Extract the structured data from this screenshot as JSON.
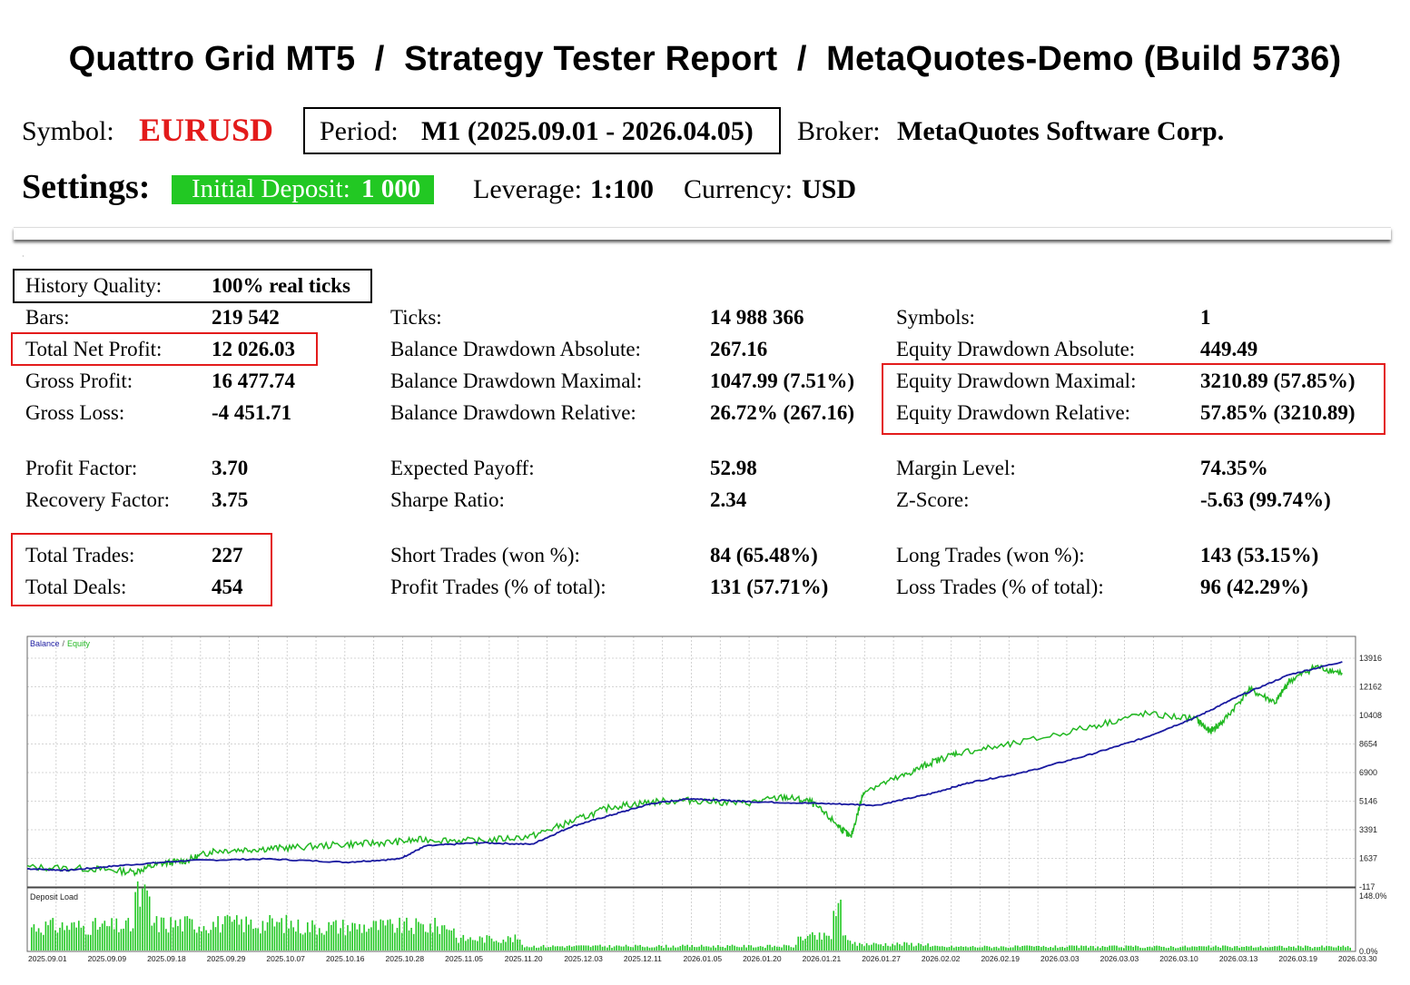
{
  "header": {
    "title": "Quattro Grid MT5  /  Strategy Tester Report  /  MetaQuotes-Demo (Build 5736)"
  },
  "info": {
    "symbol_label": "Symbol:",
    "symbol": "EURUSD",
    "period_label": "Period:",
    "period": "M1 (2025.09.01 - 2026.04.05)",
    "broker_label": "Broker:",
    "broker": "MetaQuotes Software Corp."
  },
  "settings": {
    "heading": "Settings:",
    "initial_deposit_label": "Initial Deposit:",
    "initial_deposit": "1 000",
    "leverage_label": "Leverage:",
    "leverage": "1:100",
    "currency_label": "Currency:",
    "currency": "USD"
  },
  "stats": {
    "history_quality_label": "History Quality:",
    "history_quality": "100% real ticks",
    "bars_label": "Bars:",
    "bars": "219 542",
    "total_net_profit_label": "Total Net Profit:",
    "total_net_profit": "12 026.03",
    "gross_profit_label": "Gross Profit:",
    "gross_profit": "16 477.74",
    "gross_loss_label": "Gross Loss:",
    "gross_loss": "-4 451.71",
    "profit_factor_label": "Profit Factor:",
    "profit_factor": "3.70",
    "recovery_factor_label": "Recovery Factor:",
    "recovery_factor": "3.75",
    "total_trades_label": "Total Trades:",
    "total_trades": "227",
    "total_deals_label": "Total Deals:",
    "total_deals": "454",
    "ticks_label": "Ticks:",
    "ticks": "14 988 366",
    "bal_dd_abs_label": "Balance Drawdown Absolute:",
    "bal_dd_abs": "267.16",
    "bal_dd_max_label": "Balance Drawdown Maximal:",
    "bal_dd_max": "1047.99 (7.51%)",
    "bal_dd_rel_label": "Balance Drawdown Relative:",
    "bal_dd_rel": "26.72% (267.16)",
    "expected_payoff_label": "Expected Payoff:",
    "expected_payoff": "52.98",
    "sharpe_label": "Sharpe Ratio:",
    "sharpe": "2.34",
    "short_trades_label": "Short Trades (won %):",
    "short_trades": "84 (65.48%)",
    "profit_trades_label": "Profit Trades (% of total):",
    "profit_trades": "131 (57.71%)",
    "symbols_label": "Symbols:",
    "symbols": "1",
    "eq_dd_abs_label": "Equity Drawdown Absolute:",
    "eq_dd_abs": "449.49",
    "eq_dd_max_label": "Equity Drawdown Maximal:",
    "eq_dd_max": "3210.89 (57.85%)",
    "eq_dd_rel_label": "Equity Drawdown Relative:",
    "eq_dd_rel": "57.85% (3210.89)",
    "margin_level_label": "Margin Level:",
    "margin_level": "74.35%",
    "zscore_label": "Z-Score:",
    "zscore": "-5.63 (99.74%)",
    "long_trades_label": "Long Trades (won %):",
    "long_trades": "143 (53.15%)",
    "loss_trades_label": "Loss Trades (% of total):",
    "loss_trades": "96 (42.29%)"
  },
  "colors": {
    "balance": "#1a1aa0",
    "equity": "#22b822",
    "symbol": "#e31b1b",
    "deposit_bg": "#22c823",
    "highlight_box": "#e31b1b"
  },
  "chart_data": {
    "type": "line",
    "legend": [
      "Balance",
      "Equity"
    ],
    "legend_sep": "/",
    "y_ticks": [
      "13916",
      "12162",
      "10408",
      "8654",
      "6900",
      "5146",
      "3391",
      "1637",
      "-117"
    ],
    "ylim": [
      -117,
      13916
    ],
    "x_ticks": [
      "2025.09.01",
      "2025.09.09",
      "2025.09.18",
      "2025.09.29",
      "2025.10.07",
      "2025.10.16",
      "2025.10.28",
      "2025.11.05",
      "2025.11.20",
      "2025.12.03",
      "2025.12.11",
      "2026.01.05",
      "2026.01.20",
      "2026.01.21",
      "2026.01.27",
      "2026.02.02",
      "2026.02.19",
      "2026.03.03",
      "2026.03.03",
      "2026.03.10",
      "2026.03.13",
      "2026.03.19",
      "2026.03.30"
    ],
    "series": [
      {
        "name": "Balance",
        "x": [
          0,
          0.03,
          0.07,
          0.12,
          0.18,
          0.24,
          0.28,
          0.3,
          0.34,
          0.38,
          0.41,
          0.44,
          0.47,
          0.5,
          0.52,
          0.55,
          0.6,
          0.64,
          0.68,
          0.71,
          0.75,
          0.8,
          0.84,
          0.88,
          0.91,
          0.95,
          0.99
        ],
        "values": [
          1000,
          900,
          1200,
          1500,
          1600,
          1400,
          1600,
          2400,
          2600,
          2500,
          3600,
          4300,
          5000,
          5300,
          5200,
          5100,
          5000,
          4900,
          5600,
          6300,
          6900,
          8000,
          9000,
          10300,
          11500,
          12900,
          13700
        ]
      },
      {
        "name": "Equity",
        "x": [
          0,
          0.05,
          0.08,
          0.1,
          0.12,
          0.14,
          0.17,
          0.2,
          0.24,
          0.27,
          0.3,
          0.34,
          0.38,
          0.41,
          0.44,
          0.47,
          0.5,
          0.54,
          0.57,
          0.59,
          0.61,
          0.62,
          0.63,
          0.66,
          0.68,
          0.7,
          0.74,
          0.8,
          0.84,
          0.88,
          0.89,
          0.9,
          0.92,
          0.94,
          0.95,
          0.97,
          0.99
        ],
        "values": [
          1100,
          1000,
          800,
          1300,
          1500,
          2100,
          2200,
          2300,
          2500,
          2600,
          2800,
          2700,
          3000,
          3900,
          4800,
          5100,
          5200,
          5000,
          5400,
          5100,
          3700,
          2900,
          5800,
          6700,
          7500,
          8100,
          8600,
          9700,
          10500,
          10200,
          9400,
          10000,
          12000,
          11200,
          12500,
          13400,
          13000
        ]
      }
    ],
    "sub_chart": {
      "title": "Deposit Load",
      "type": "bar",
      "ylim_labels": [
        "148.0%",
        "0.0%"
      ]
    }
  }
}
